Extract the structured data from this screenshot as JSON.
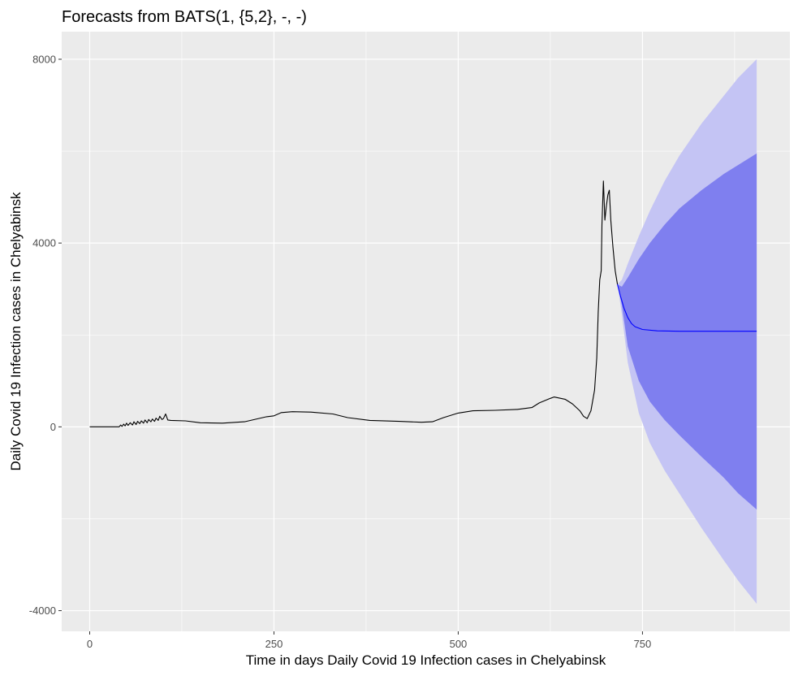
{
  "chart_data": {
    "type": "line",
    "title": "Forecasts from BATS(1, {5,2}, -, -)",
    "xlabel": "Time in days Daily Covid 19 Infection cases in Chelyabinsk",
    "ylabel": "Daily Covid 19 Infection cases in Chelyabinsk",
    "xlim": [
      -38,
      950
    ],
    "ylim": [
      -4450,
      8600
    ],
    "x_ticks": [
      0,
      250,
      500,
      750
    ],
    "y_ticks": [
      -4000,
      0,
      4000,
      8000
    ],
    "grid": true,
    "legend": "none",
    "colors": {
      "panel_background": "#ebebeb",
      "grid": "#ffffff",
      "observed": "#000000",
      "forecast": "#0000ff",
      "interval_80": "#7f7fef",
      "interval_95": "#c4c4f4"
    },
    "series": [
      {
        "role": "observed",
        "points": [
          [
            0,
            0
          ],
          [
            20,
            0
          ],
          [
            40,
            0
          ],
          [
            42,
            40
          ],
          [
            44,
            10
          ],
          [
            46,
            60
          ],
          [
            48,
            20
          ],
          [
            50,
            80
          ],
          [
            52,
            30
          ],
          [
            55,
            90
          ],
          [
            58,
            40
          ],
          [
            60,
            110
          ],
          [
            63,
            50
          ],
          [
            65,
            120
          ],
          [
            68,
            70
          ],
          [
            70,
            130
          ],
          [
            73,
            80
          ],
          [
            75,
            150
          ],
          [
            78,
            90
          ],
          [
            80,
            160
          ],
          [
            83,
            110
          ],
          [
            85,
            170
          ],
          [
            88,
            120
          ],
          [
            90,
            190
          ],
          [
            93,
            140
          ],
          [
            95,
            230
          ],
          [
            98,
            160
          ],
          [
            100,
            180
          ],
          [
            103,
            280
          ],
          [
            106,
            150
          ],
          [
            110,
            140
          ],
          [
            130,
            130
          ],
          [
            150,
            90
          ],
          [
            180,
            80
          ],
          [
            210,
            110
          ],
          [
            240,
            220
          ],
          [
            250,
            240
          ],
          [
            260,
            310
          ],
          [
            275,
            330
          ],
          [
            300,
            320
          ],
          [
            330,
            280
          ],
          [
            350,
            200
          ],
          [
            380,
            140
          ],
          [
            420,
            120
          ],
          [
            450,
            100
          ],
          [
            465,
            110
          ],
          [
            480,
            200
          ],
          [
            500,
            300
          ],
          [
            520,
            350
          ],
          [
            550,
            360
          ],
          [
            580,
            380
          ],
          [
            600,
            420
          ],
          [
            610,
            520
          ],
          [
            625,
            620
          ],
          [
            630,
            650
          ],
          [
            645,
            600
          ],
          [
            655,
            500
          ],
          [
            665,
            350
          ],
          [
            670,
            230
          ],
          [
            675,
            180
          ],
          [
            680,
            350
          ],
          [
            685,
            800
          ],
          [
            688,
            1500
          ],
          [
            690,
            2500
          ],
          [
            692,
            3200
          ],
          [
            694,
            3400
          ],
          [
            695,
            4400
          ],
          [
            697,
            5350
          ],
          [
            699,
            4500
          ],
          [
            701,
            4800
          ],
          [
            703,
            5050
          ],
          [
            705,
            5150
          ],
          [
            707,
            4500
          ],
          [
            710,
            3900
          ],
          [
            713,
            3400
          ],
          [
            716,
            3100
          ]
        ]
      },
      {
        "role": "forecast",
        "name": "",
        "points": [
          [
            716,
            3100
          ],
          [
            720,
            2850
          ],
          [
            725,
            2580
          ],
          [
            730,
            2380
          ],
          [
            735,
            2250
          ],
          [
            740,
            2180
          ],
          [
            750,
            2120
          ],
          [
            770,
            2090
          ],
          [
            800,
            2080
          ],
          [
            850,
            2080
          ],
          [
            905,
            2080
          ]
        ]
      },
      {
        "role": "interval_80",
        "upper": [
          [
            716,
            3100
          ],
          [
            722,
            3050
          ],
          [
            730,
            3250
          ],
          [
            745,
            3650
          ],
          [
            760,
            4000
          ],
          [
            780,
            4400
          ],
          [
            800,
            4750
          ],
          [
            830,
            5150
          ],
          [
            860,
            5500
          ],
          [
            880,
            5700
          ],
          [
            905,
            5950
          ]
        ],
        "lower": [
          [
            716,
            3100
          ],
          [
            722,
            2650
          ],
          [
            730,
            1750
          ],
          [
            745,
            1000
          ],
          [
            760,
            550
          ],
          [
            780,
            150
          ],
          [
            800,
            -180
          ],
          [
            830,
            -650
          ],
          [
            860,
            -1100
          ],
          [
            880,
            -1450
          ],
          [
            905,
            -1800
          ]
        ]
      },
      {
        "role": "interval_95",
        "upper": [
          [
            716,
            3100
          ],
          [
            722,
            3200
          ],
          [
            730,
            3550
          ],
          [
            745,
            4150
          ],
          [
            760,
            4700
          ],
          [
            780,
            5350
          ],
          [
            800,
            5900
          ],
          [
            830,
            6600
          ],
          [
            860,
            7200
          ],
          [
            880,
            7600
          ],
          [
            905,
            8000
          ]
        ],
        "lower": [
          [
            716,
            3100
          ],
          [
            722,
            2450
          ],
          [
            730,
            1400
          ],
          [
            745,
            300
          ],
          [
            760,
            -350
          ],
          [
            780,
            -950
          ],
          [
            800,
            -1450
          ],
          [
            830,
            -2200
          ],
          [
            860,
            -2900
          ],
          [
            880,
            -3350
          ],
          [
            905,
            -3850
          ]
        ]
      }
    ]
  }
}
